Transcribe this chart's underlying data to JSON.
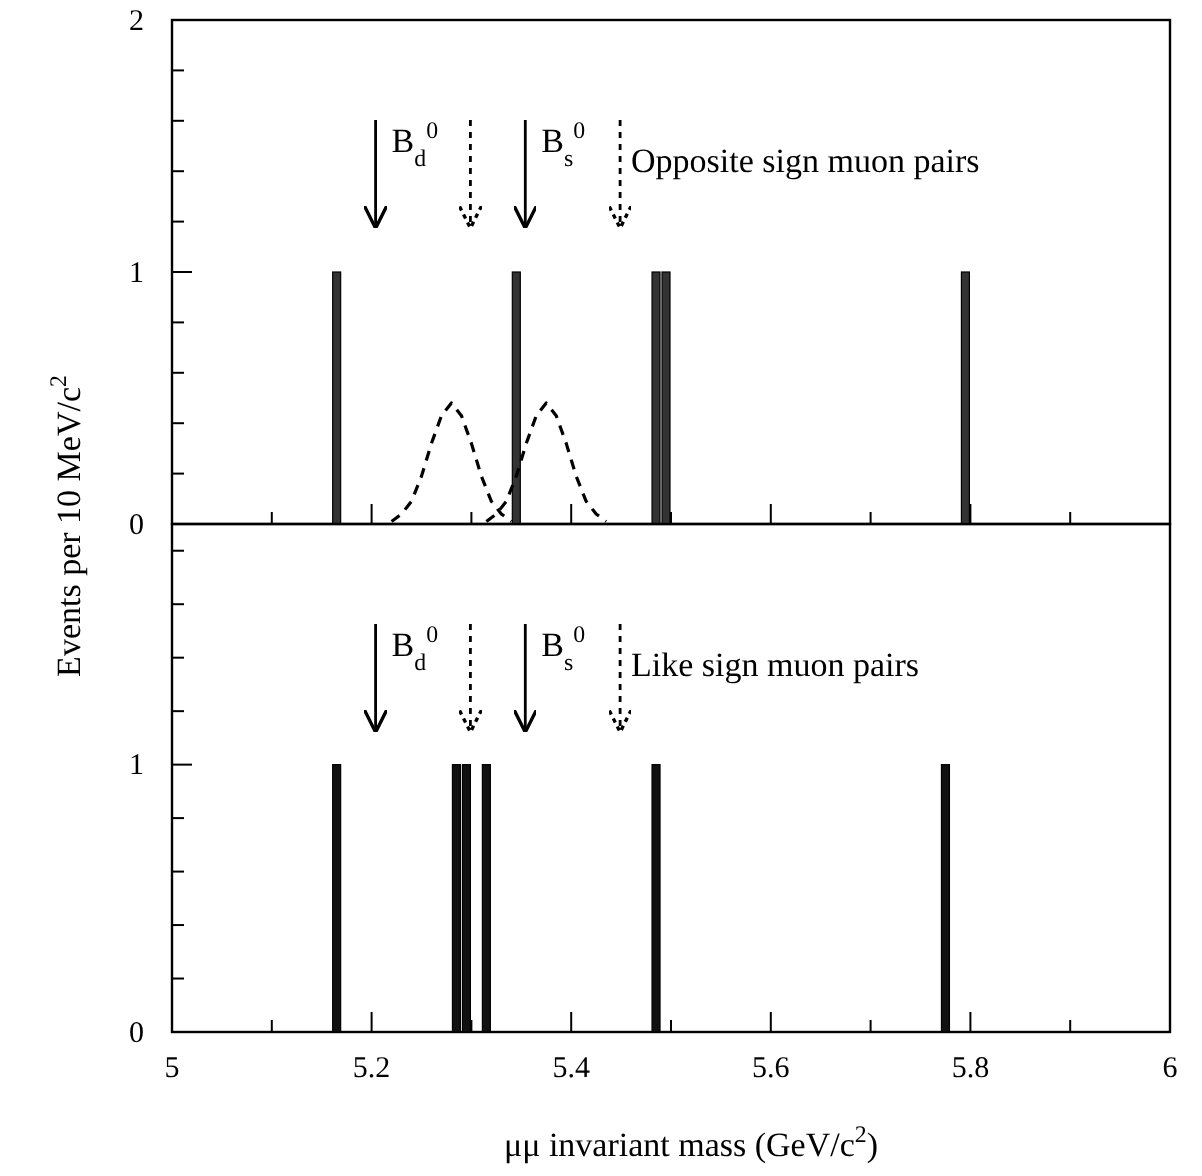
{
  "chart_data": [
    {
      "type": "histogram",
      "ylabel": "Events per 10 MeV/c$^{2}$",
      "bins": [
        5,
        5.01,
        5.02,
        5.03,
        5.04,
        5.05,
        5.06,
        5.07,
        5.08,
        5.09,
        5.1,
        5.11,
        5.12,
        5.13,
        5.14,
        5.15,
        5.16,
        5.17,
        5.18,
        5.19,
        5.2,
        5.21,
        5.22,
        5.23,
        5.24,
        5.25,
        5.26,
        5.27,
        5.28,
        5.29,
        5.3,
        5.31,
        5.32,
        5.33,
        5.34,
        5.35,
        5.36,
        5.37,
        5.38,
        5.39,
        5.4,
        5.41,
        5.42,
        5.43,
        5.44,
        5.45,
        5.46,
        5.47,
        5.48,
        5.49,
        5.5,
        5.51,
        5.52,
        5.53,
        5.54,
        5.55,
        5.56,
        5.57,
        5.58,
        5.59,
        5.6,
        5.61,
        5.62,
        5.63,
        5.64,
        5.65,
        5.66,
        5.67,
        5.68,
        5.69,
        5.7,
        5.71,
        5.72,
        5.73,
        5.74,
        5.75,
        5.76,
        5.77,
        5.78,
        5.79,
        5.8,
        5.81,
        5.82,
        5.83,
        5.84,
        5.85,
        5.86,
        5.87,
        5.88,
        5.89,
        5.9,
        5.91,
        5.92,
        5.93,
        5.94,
        5.95,
        5.96,
        5.97,
        5.98,
        5.99,
        6
      ],
      "series": [
        {
          "type": "histogram",
          "color": "#333333",
          "values": [
            0,
            0,
            0,
            0,
            0,
            0,
            0,
            0,
            0,
            0,
            0,
            0,
            0,
            0,
            0,
            0,
            1,
            0,
            0,
            0,
            0,
            0,
            0,
            0,
            0,
            0,
            0,
            0,
            0,
            0,
            0,
            0,
            0,
            0,
            1,
            0,
            0,
            0,
            0,
            0,
            0,
            0,
            0,
            0,
            0,
            0,
            0,
            0,
            1,
            1,
            0,
            0,
            0,
            0,
            0,
            0,
            0,
            0,
            0,
            0,
            0,
            0,
            0,
            0,
            0,
            0,
            0,
            0,
            0,
            0,
            0,
            0,
            0,
            0,
            0,
            0,
            0,
            0,
            0,
            1,
            0,
            0,
            0,
            0,
            0,
            0,
            0,
            0,
            0,
            0,
            0,
            0,
            0,
            0,
            0,
            0,
            0,
            0,
            0,
            0
          ]
        },
        {
          "type": "line",
          "color": "#000000",
          "line_style": "dashed",
          "x": [
            5.22,
            5.23,
            5.24,
            5.25,
            5.26,
            5.27,
            5.28,
            5.29,
            5.3,
            5.31,
            5.32,
            5.33,
            5.34
          ],
          "values": [
            0.01,
            0.04,
            0.09,
            0.19,
            0.32,
            0.43,
            0.48,
            0.43,
            0.32,
            0.19,
            0.09,
            0.04,
            0.01
          ]
        },
        {
          "type": "line",
          "color": "#000000",
          "line_style": "dashed",
          "x": [
            5.315,
            5.325,
            5.335,
            5.345,
            5.355,
            5.365,
            5.375,
            5.385,
            5.395,
            5.405,
            5.415,
            5.425,
            5.435
          ],
          "values": [
            0.01,
            0.04,
            0.09,
            0.19,
            0.32,
            0.43,
            0.48,
            0.43,
            0.32,
            0.19,
            0.09,
            0.04,
            0.01
          ]
        }
      ],
      "xlim": [
        5,
        6
      ],
      "xticks": [
        5,
        {
          "value": 5.1,
          "label": null
        },
        5.2,
        {
          "value": 5.3,
          "label": null
        },
        5.4,
        {
          "value": 5.5,
          "label": null
        },
        5.6,
        {
          "value": 5.7,
          "label": null
        },
        5.8,
        {
          "value": 5.9,
          "label": null
        },
        6
      ],
      "ylim": [
        0,
        2
      ],
      "yticks": [
        0,
        {
          "value": 0.2,
          "label": null
        },
        {
          "value": 0.4,
          "label": null
        },
        {
          "value": 0.6,
          "label": null
        },
        {
          "value": 0.8,
          "label": null
        },
        1,
        {
          "value": 1.2,
          "label": null
        },
        {
          "value": 1.4,
          "label": null
        },
        {
          "value": 1.6,
          "label": null
        },
        {
          "value": 1.8,
          "label": null
        },
        2
      ],
      "tick_labels": "y",
      "ref_lines": [
        {
          "axis": "x",
          "value": 5.204,
          "label": "B$_{d}$$^{0}$",
          "line_style": "solid"
        },
        {
          "axis": "x",
          "value": 5.299,
          "line_style": "dashed"
        },
        {
          "axis": "x",
          "value": 5.354,
          "label": "B$_{s}$$^{0}$",
          "line_style": "solid"
        },
        {
          "axis": "x",
          "value": 5.449,
          "line_style": "dashed"
        }
      ],
      "annotations": [
        "Opposite sign muon pairs"
      ]
    },
    {
      "type": "histogram",
      "xlabel": "μμ invariant mass (GeV/c$^{2}$)",
      "bins": [
        5,
        5.01,
        5.02,
        5.03,
        5.04,
        5.05,
        5.06,
        5.07,
        5.08,
        5.09,
        5.1,
        5.11,
        5.12,
        5.13,
        5.14,
        5.15,
        5.16,
        5.17,
        5.18,
        5.19,
        5.2,
        5.21,
        5.22,
        5.23,
        5.24,
        5.25,
        5.26,
        5.27,
        5.28,
        5.29,
        5.3,
        5.31,
        5.32,
        5.33,
        5.34,
        5.35,
        5.36,
        5.37,
        5.38,
        5.39,
        5.4,
        5.41,
        5.42,
        5.43,
        5.44,
        5.45,
        5.46,
        5.47,
        5.48,
        5.49,
        5.5,
        5.51,
        5.52,
        5.53,
        5.54,
        5.55,
        5.56,
        5.57,
        5.58,
        5.59,
        5.6,
        5.61,
        5.62,
        5.63,
        5.64,
        5.65,
        5.66,
        5.67,
        5.68,
        5.69,
        5.7,
        5.71,
        5.72,
        5.73,
        5.74,
        5.75,
        5.76,
        5.77,
        5.78,
        5.79,
        5.8,
        5.81,
        5.82,
        5.83,
        5.84,
        5.85,
        5.86,
        5.87,
        5.88,
        5.89,
        5.9,
        5.91,
        5.92,
        5.93,
        5.94,
        5.95,
        5.96,
        5.97,
        5.98,
        5.99,
        6
      ],
      "series": [
        {
          "type": "histogram",
          "color": "#111111",
          "values": [
            0,
            0,
            0,
            0,
            0,
            0,
            0,
            0,
            0,
            0,
            0,
            0,
            0,
            0,
            0,
            0,
            1,
            0,
            0,
            0,
            0,
            0,
            0,
            0,
            0,
            0,
            0,
            0,
            1,
            1,
            0,
            1,
            0,
            0,
            0,
            0,
            0,
            0,
            0,
            0,
            0,
            0,
            0,
            0,
            0,
            0,
            0,
            0,
            1,
            0,
            0,
            0,
            0,
            0,
            0,
            0,
            0,
            0,
            0,
            0,
            0,
            0,
            0,
            0,
            0,
            0,
            0,
            0,
            0,
            0,
            0,
            0,
            0,
            0,
            0,
            0,
            0,
            1,
            0,
            0,
            0,
            0,
            0,
            0,
            0,
            0,
            0,
            0,
            0,
            0,
            0,
            0,
            0,
            0,
            0,
            0,
            0,
            0,
            0,
            0
          ]
        }
      ],
      "xlim": [
        5,
        6
      ],
      "xticks": [
        5,
        {
          "value": 5.1,
          "label": null
        },
        5.2,
        {
          "value": 5.3,
          "label": null
        },
        5.4,
        {
          "value": 5.5,
          "label": null
        },
        5.6,
        {
          "value": 5.7,
          "label": null
        },
        5.8,
        {
          "value": 5.9,
          "label": null
        },
        6
      ],
      "ylim": [
        0,
        1.9
      ],
      "yticks": [
        0,
        {
          "value": 0.2,
          "label": null
        },
        {
          "value": 0.4,
          "label": null
        },
        {
          "value": 0.6,
          "label": null
        },
        {
          "value": 0.8,
          "label": null
        },
        1,
        {
          "value": 1.2,
          "label": null
        },
        {
          "value": 1.4,
          "label": null
        },
        {
          "value": 1.6,
          "label": null
        },
        {
          "value": 1.8,
          "label": null
        }
      ],
      "ref_lines": [
        {
          "axis": "x",
          "value": 5.204,
          "label": "B$_{d}$$^{0}$",
          "line_style": "solid"
        },
        {
          "axis": "x",
          "value": 5.299,
          "line_style": "dashed"
        },
        {
          "axis": "x",
          "value": 5.354,
          "label": "B$_{s}$$^{0}$",
          "line_style": "solid"
        },
        {
          "axis": "x",
          "value": 5.449,
          "line_style": "dashed"
        }
      ],
      "annotations": [
        "Like sign  muon pairs"
      ]
    }
  ]
}
